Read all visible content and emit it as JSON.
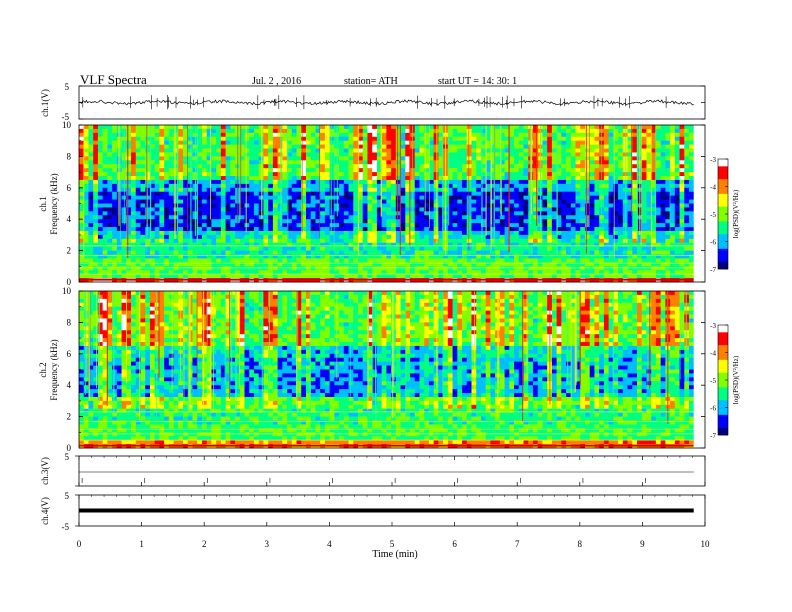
{
  "header": {
    "title": "VLF  Spectra",
    "date": "Jul.  2  , 2016",
    "station": "station= ATH",
    "start": "start  UT  =   14: 30: 1"
  },
  "chart_data": [
    {
      "type": "line",
      "panel": "ch1-waveform",
      "ylabel": "ch.1(V)",
      "ylim": [
        -5,
        5
      ],
      "yticks": [
        "5",
        "-5"
      ],
      "baseline": 0,
      "note_values": "noisy waveform near 0 V with spikes to about +/-2 V"
    },
    {
      "type": "heatmap",
      "panel": "ch1-spectrogram",
      "ylabel_channel": "ch.1",
      "ylabel": "Frequency  (kHz)",
      "ylim": [
        0,
        10
      ],
      "yticks": [
        "0",
        "2",
        "4",
        "6",
        "8",
        "10"
      ],
      "colorbar": {
        "label": "log(PSD)(V²/Hz)",
        "range": [
          -7,
          -3
        ],
        "ticks": [
          "-3",
          "-4",
          "-5",
          "-6",
          "-7"
        ],
        "colors": [
          "#000080",
          "#0000ff",
          "#00bfff",
          "#00ff80",
          "#80ff00",
          "#ffff00",
          "#ff8000",
          "#ff0000",
          "#ffffff"
        ]
      },
      "bands": [
        {
          "fmin": 0.0,
          "fmax": 0.3,
          "level": -3.5
        },
        {
          "fmin": 0.3,
          "fmax": 1.5,
          "level": -5.2
        },
        {
          "fmin": 1.5,
          "fmax": 2.8,
          "level": -5.6
        },
        {
          "fmin": 2.8,
          "fmax": 3.3,
          "level": -6.0
        },
        {
          "fmin": 3.3,
          "fmax": 5.8,
          "level": -6.6
        },
        {
          "fmin": 5.8,
          "fmax": 6.6,
          "level": -6.2
        },
        {
          "fmin": 6.6,
          "fmax": 10.0,
          "level": -5.5
        }
      ]
    },
    {
      "type": "heatmap",
      "panel": "ch2-spectrogram",
      "ylabel_channel": "ch.2",
      "ylabel": "Frequency  (kHz)",
      "ylim": [
        0,
        10
      ],
      "yticks": [
        "0",
        "2",
        "4",
        "6",
        "8",
        "10"
      ],
      "colorbar": {
        "label": "log(PSD)(V²/Hz)",
        "range": [
          -7,
          -3
        ],
        "ticks": [
          "-3",
          "-4",
          "-5",
          "-6",
          "-7"
        ],
        "colors": [
          "#000080",
          "#0000ff",
          "#00bfff",
          "#00ff80",
          "#80ff00",
          "#ffff00",
          "#ff8000",
          "#ff0000",
          "#ffffff"
        ]
      },
      "bands": [
        {
          "fmin": 0.0,
          "fmax": 0.4,
          "level": -4.0
        },
        {
          "fmin": 0.4,
          "fmax": 1.5,
          "level": -5.3
        },
        {
          "fmin": 1.5,
          "fmax": 3.2,
          "level": -5.4
        },
        {
          "fmin": 3.2,
          "fmax": 5.7,
          "level": -6.2
        },
        {
          "fmin": 5.7,
          "fmax": 6.4,
          "level": -6.0
        },
        {
          "fmin": 6.4,
          "fmax": 10.0,
          "level": -5.4
        }
      ]
    },
    {
      "type": "line",
      "panel": "ch3-waveform",
      "ylabel": "ch.3(V)",
      "ylim": [
        -5,
        5
      ],
      "yticks": [
        "5"
      ],
      "baseline": 0
    },
    {
      "type": "line",
      "panel": "ch4-waveform",
      "ylabel": "ch.4(V)",
      "ylim": [
        -5,
        5
      ],
      "yticks": [
        "5",
        "-5"
      ],
      "baseline": 0
    },
    {
      "type": "axis",
      "panel": "time-axis",
      "xlabel": "Time  (min)",
      "xlim": [
        0,
        10
      ],
      "xticks": [
        "0",
        "1",
        "2",
        "3",
        "4",
        "5",
        "6",
        "7",
        "8",
        "9",
        "10"
      ],
      "data_end_min": 9.82
    }
  ]
}
